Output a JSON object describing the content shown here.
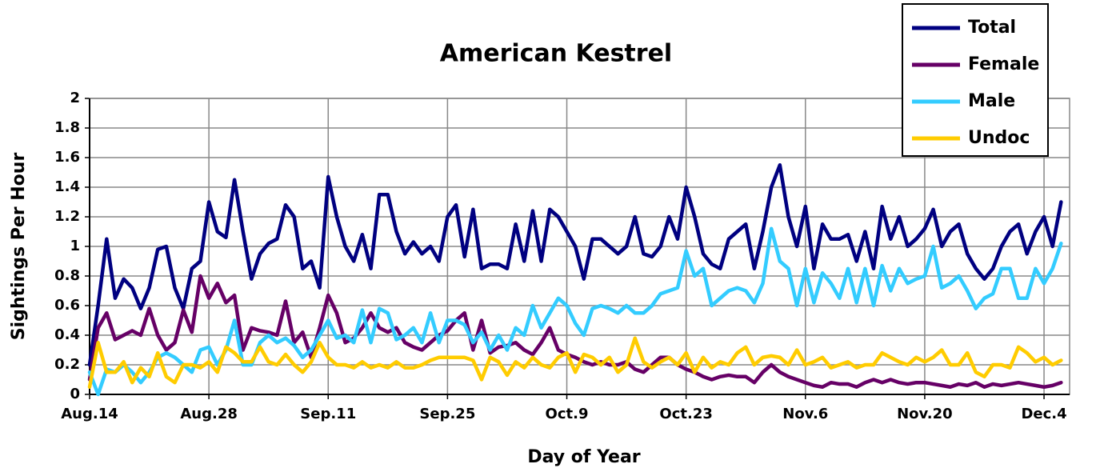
{
  "chart_data": {
    "type": "line",
    "title": "American Kestrel",
    "x_label": "Day of Year",
    "y_label": "Sightings Per Hour",
    "x": [
      0,
      1,
      2,
      3,
      4,
      5,
      6,
      7,
      8,
      9,
      10,
      11,
      12,
      13,
      14,
      15,
      16,
      17,
      18,
      19,
      20,
      21,
      22,
      23,
      24,
      25,
      26,
      27,
      28,
      29,
      30,
      31,
      32,
      33,
      34,
      35,
      36,
      37,
      38,
      39,
      40,
      41,
      42,
      43,
      44,
      45,
      46,
      47,
      48,
      49,
      50,
      51,
      52,
      53,
      54,
      55,
      56,
      57,
      58,
      59,
      60,
      61,
      62,
      63,
      64,
      65,
      66,
      67,
      68,
      69,
      70,
      71,
      72,
      73,
      74,
      75,
      76,
      77,
      78,
      79,
      80,
      81,
      82,
      83,
      84,
      85,
      86,
      87,
      88,
      89,
      90,
      91,
      92,
      93,
      94,
      95,
      96,
      97,
      98,
      99,
      100,
      101,
      102,
      103,
      104,
      105,
      106,
      107,
      108,
      109,
      110,
      111,
      112,
      113,
      114
    ],
    "xlim": [
      0,
      115
    ],
    "xticks": [
      {
        "value": 0,
        "label": "Aug.14"
      },
      {
        "value": 14,
        "label": "Aug.28"
      },
      {
        "value": 28,
        "label": "Sep.11"
      },
      {
        "value": 42,
        "label": "Sep.25"
      },
      {
        "value": 56,
        "label": "Oct.9"
      },
      {
        "value": 70,
        "label": "Oct.23"
      },
      {
        "value": 84,
        "label": "Nov.6"
      },
      {
        "value": 98,
        "label": "Nov.20"
      },
      {
        "value": 112,
        "label": "Dec.4"
      }
    ],
    "ylim": [
      0,
      2
    ],
    "yticks": [
      0,
      0.2,
      0.4,
      0.6,
      0.8,
      1,
      1.2,
      1.4,
      1.6,
      1.8,
      2
    ],
    "grid": true,
    "legend": "upper right",
    "series": [
      {
        "name": "Total",
        "color": "#000080",
        "values": [
          0.2,
          0.6,
          1.05,
          0.65,
          0.78,
          0.72,
          0.58,
          0.72,
          0.98,
          1.0,
          0.72,
          0.58,
          0.85,
          0.9,
          1.3,
          1.1,
          1.06,
          1.45,
          1.1,
          0.78,
          0.95,
          1.02,
          1.05,
          1.28,
          1.2,
          0.85,
          0.9,
          0.72,
          1.47,
          1.2,
          1.0,
          0.9,
          1.08,
          0.85,
          1.35,
          1.35,
          1.1,
          0.95,
          1.03,
          0.95,
          1.0,
          0.9,
          1.2,
          1.28,
          0.93,
          1.25,
          0.85,
          0.88,
          0.88,
          0.85,
          1.15,
          0.9,
          1.24,
          0.9,
          1.25,
          1.2,
          1.1,
          1.0,
          0.78,
          1.05,
          1.05,
          1.0,
          0.95,
          1.0,
          1.2,
          0.95,
          0.93,
          1.0,
          1.2,
          1.05,
          1.4,
          1.2,
          0.95,
          0.88,
          0.85,
          1.05,
          1.1,
          1.15,
          0.85,
          1.1,
          1.4,
          1.55,
          1.2,
          1.0,
          1.27,
          0.85,
          1.15,
          1.05,
          1.05,
          1.08,
          0.9,
          1.1,
          0.85,
          1.27,
          1.05,
          1.2,
          1.0,
          1.05,
          1.12,
          1.25,
          1.0,
          1.1,
          1.15,
          0.95,
          0.85,
          0.78,
          0.85,
          1.0,
          1.1,
          1.15,
          0.95,
          1.1,
          1.2,
          1.0,
          1.3
        ]
      },
      {
        "name": "Female",
        "color": "#660066",
        "values": [
          0.1,
          0.45,
          0.55,
          0.37,
          0.4,
          0.43,
          0.4,
          0.58,
          0.4,
          0.3,
          0.35,
          0.57,
          0.42,
          0.8,
          0.65,
          0.75,
          0.62,
          0.67,
          0.3,
          0.45,
          0.43,
          0.42,
          0.4,
          0.63,
          0.35,
          0.42,
          0.25,
          0.45,
          0.67,
          0.55,
          0.35,
          0.38,
          0.45,
          0.55,
          0.45,
          0.42,
          0.45,
          0.35,
          0.32,
          0.3,
          0.35,
          0.4,
          0.43,
          0.5,
          0.55,
          0.3,
          0.5,
          0.28,
          0.32,
          0.33,
          0.35,
          0.3,
          0.27,
          0.35,
          0.45,
          0.3,
          0.27,
          0.25,
          0.22,
          0.2,
          0.22,
          0.2,
          0.2,
          0.22,
          0.17,
          0.15,
          0.2,
          0.25,
          0.25,
          0.2,
          0.17,
          0.15,
          0.12,
          0.1,
          0.12,
          0.13,
          0.12,
          0.12,
          0.08,
          0.15,
          0.2,
          0.15,
          0.12,
          0.1,
          0.08,
          0.06,
          0.05,
          0.08,
          0.07,
          0.07,
          0.05,
          0.08,
          0.1,
          0.08,
          0.1,
          0.08,
          0.07,
          0.08,
          0.08,
          0.07,
          0.06,
          0.05,
          0.07,
          0.06,
          0.08,
          0.05,
          0.07,
          0.06,
          0.07,
          0.08,
          0.07,
          0.06,
          0.05,
          0.06,
          0.08
        ]
      },
      {
        "name": "Male",
        "color": "#33CCFF",
        "values": [
          0.15,
          0.0,
          0.17,
          0.15,
          0.2,
          0.15,
          0.08,
          0.15,
          0.25,
          0.28,
          0.25,
          0.2,
          0.15,
          0.3,
          0.32,
          0.2,
          0.3,
          0.5,
          0.2,
          0.2,
          0.35,
          0.4,
          0.35,
          0.38,
          0.33,
          0.25,
          0.3,
          0.4,
          0.5,
          0.38,
          0.4,
          0.35,
          0.57,
          0.35,
          0.58,
          0.55,
          0.37,
          0.4,
          0.45,
          0.35,
          0.55,
          0.35,
          0.5,
          0.5,
          0.47,
          0.35,
          0.42,
          0.3,
          0.4,
          0.3,
          0.45,
          0.4,
          0.6,
          0.45,
          0.55,
          0.65,
          0.6,
          0.48,
          0.4,
          0.58,
          0.6,
          0.58,
          0.55,
          0.6,
          0.55,
          0.55,
          0.6,
          0.68,
          0.7,
          0.72,
          0.97,
          0.8,
          0.85,
          0.6,
          0.65,
          0.7,
          0.72,
          0.7,
          0.62,
          0.75,
          1.12,
          0.9,
          0.85,
          0.6,
          0.85,
          0.62,
          0.82,
          0.75,
          0.65,
          0.85,
          0.62,
          0.85,
          0.6,
          0.87,
          0.7,
          0.85,
          0.75,
          0.78,
          0.8,
          1.0,
          0.72,
          0.75,
          0.8,
          0.7,
          0.58,
          0.65,
          0.68,
          0.85,
          0.85,
          0.65,
          0.65,
          0.85,
          0.75,
          0.85,
          1.02
        ]
      },
      {
        "name": "Undoc",
        "color": "#FFCC00",
        "values": [
          0.05,
          0.35,
          0.15,
          0.15,
          0.22,
          0.08,
          0.18,
          0.12,
          0.28,
          0.12,
          0.08,
          0.2,
          0.2,
          0.18,
          0.22,
          0.15,
          0.32,
          0.28,
          0.22,
          0.22,
          0.32,
          0.22,
          0.2,
          0.27,
          0.2,
          0.15,
          0.22,
          0.35,
          0.25,
          0.2,
          0.2,
          0.18,
          0.22,
          0.18,
          0.2,
          0.18,
          0.22,
          0.18,
          0.18,
          0.2,
          0.23,
          0.25,
          0.25,
          0.25,
          0.25,
          0.23,
          0.1,
          0.25,
          0.22,
          0.13,
          0.22,
          0.18,
          0.25,
          0.2,
          0.18,
          0.25,
          0.28,
          0.15,
          0.27,
          0.25,
          0.2,
          0.25,
          0.15,
          0.2,
          0.38,
          0.22,
          0.18,
          0.22,
          0.25,
          0.2,
          0.28,
          0.15,
          0.25,
          0.18,
          0.22,
          0.2,
          0.28,
          0.32,
          0.2,
          0.25,
          0.26,
          0.25,
          0.2,
          0.3,
          0.2,
          0.22,
          0.25,
          0.18,
          0.2,
          0.22,
          0.18,
          0.2,
          0.2,
          0.28,
          0.25,
          0.22,
          0.2,
          0.25,
          0.22,
          0.25,
          0.3,
          0.2,
          0.2,
          0.28,
          0.15,
          0.12,
          0.2,
          0.2,
          0.18,
          0.32,
          0.28,
          0.22,
          0.25,
          0.2,
          0.23
        ]
      }
    ]
  }
}
